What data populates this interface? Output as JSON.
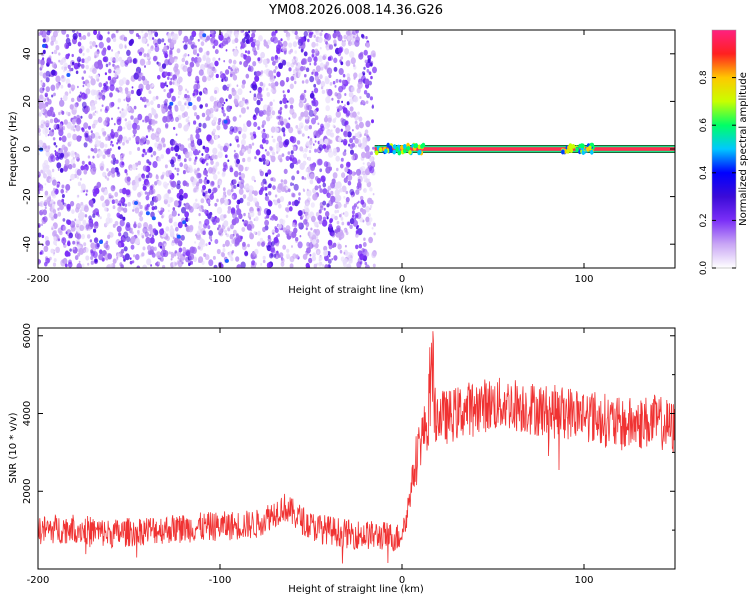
{
  "title": "YM08.2026.008.14.36.G26",
  "chart_data": [
    {
      "type": "heatmap",
      "xlabel": "Height of straight line (km)",
      "ylabel": "Frequency (Hz)",
      "xlim": [
        -200,
        150
      ],
      "ylim": [
        -50,
        50
      ],
      "x_ticks": [
        -200,
        -100,
        0,
        100
      ],
      "y_ticks": [
        -40,
        -20,
        0,
        20,
        40
      ],
      "colorbar": {
        "label": "Normalized spectral amplitude",
        "range": [
          0,
          1
        ],
        "ticks": [
          "0.0",
          "0.2",
          "0.4",
          "0.6",
          "0.8"
        ],
        "colors": [
          "#ffffff",
          "#c9a6f5",
          "#7b2ff7",
          "#3b0bd8",
          "#0000ff",
          "#00c8ff",
          "#00ff66",
          "#c8ff00",
          "#ffc800",
          "#ff2020",
          "#ff2080"
        ]
      },
      "regions": [
        {
          "x_range": [
            -200,
            -15
          ],
          "description_value": "diagonal striped speckle, amplitude ~0.1-0.3"
        },
        {
          "x_range": [
            -15,
            150
          ],
          "frequency": 0,
          "amplitude": 0.9
        }
      ],
      "grid": false
    },
    {
      "type": "line",
      "xlabel": "Height of straight line (km)",
      "ylabel": "SNR (10 * v/v)",
      "xlim": [
        -200,
        150
      ],
      "ylim": [
        0,
        6200
      ],
      "x_ticks": [
        -200,
        -100,
        0,
        100
      ],
      "y_ticks": [
        2000,
        4000,
        6000
      ],
      "color": "#f03232",
      "series": [
        {
          "x": [
            -200,
            -180,
            -160,
            -140,
            -120,
            -100,
            -80,
            -65,
            -50,
            -30,
            -10,
            -2,
            2,
            6,
            10,
            16,
            25,
            40,
            60,
            80,
            100,
            120,
            140,
            150
          ],
          "values": [
            1000,
            1050,
            900,
            1000,
            1050,
            1100,
            1150,
            1600,
            1100,
            900,
            850,
            800,
            1200,
            2400,
            3300,
            4000,
            3900,
            4200,
            4250,
            4050,
            4000,
            3700,
            3800,
            3600
          ]
        }
      ],
      "grid": false
    }
  ]
}
